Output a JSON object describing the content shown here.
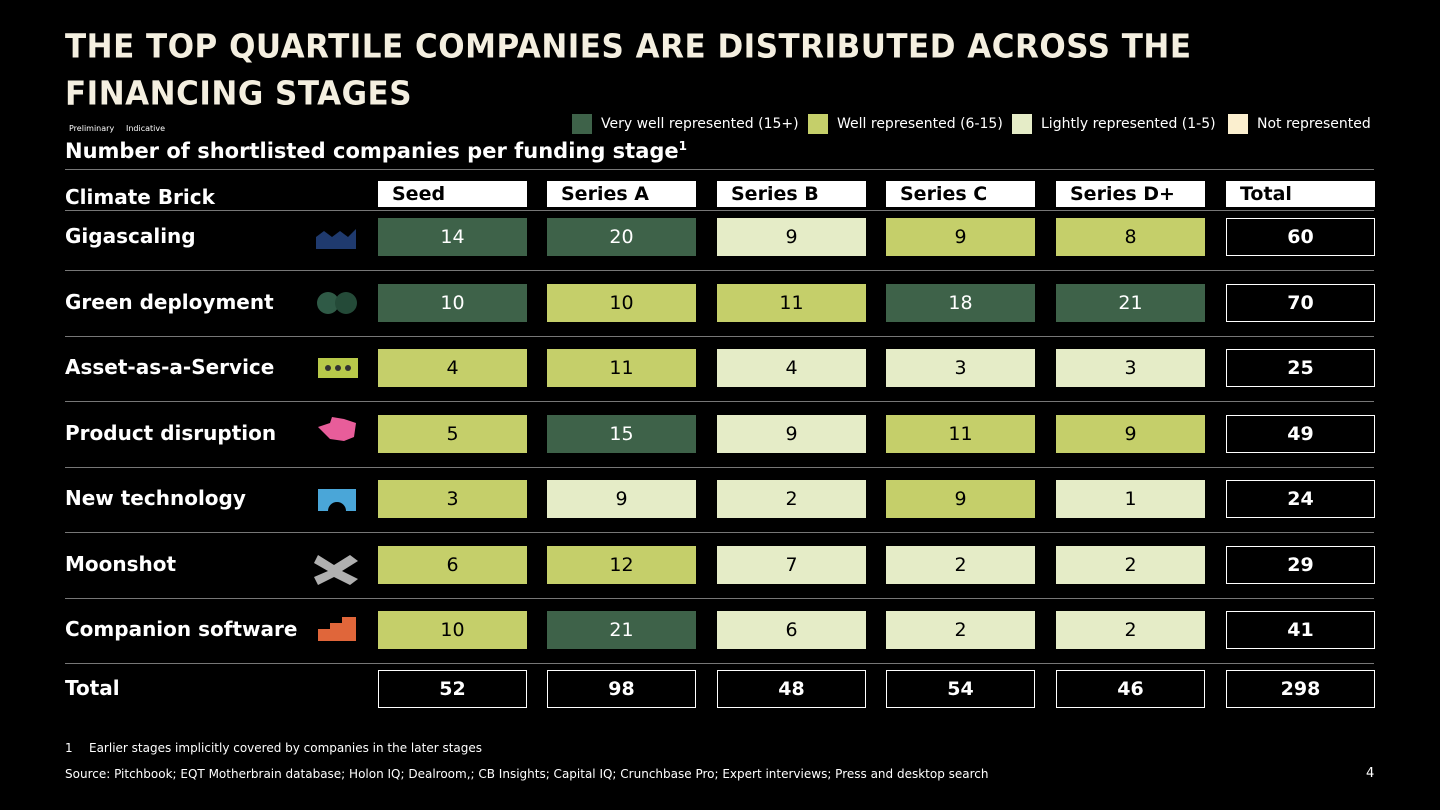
{
  "header": {
    "title": "THE TOP QUARTILE COMPANIES ARE DISTRIBUTED ACROSS THE FINANCING STAGES",
    "tags": [
      "Preliminary",
      "Indicative"
    ]
  },
  "legend": [
    {
      "label": "Very well represented (15+)",
      "color": "#3e6249"
    },
    {
      "label": "Well represented (6-15)",
      "color": "#c5cf6a"
    },
    {
      "label": "Lightly represented (1-5)",
      "color": "#e5ecc7"
    },
    {
      "label": "Not represented",
      "color": "#fbefcf"
    }
  ],
  "table": {
    "subtitle": "Number of shortlisted companies per funding stage",
    "subtitle_note": "1",
    "row_header": "Climate Brick",
    "columns": [
      "Seed",
      "Series A",
      "Series B",
      "Series C",
      "Series D+",
      "Total"
    ],
    "rows": [
      {
        "name": "Gigascaling",
        "values": [
          14,
          20,
          9,
          9,
          8
        ],
        "colors": [
          "#3e6249",
          "#3e6249",
          "#e5ecc7",
          "#c5cf6a",
          "#c5cf6a"
        ],
        "total": 60
      },
      {
        "name": "Green deployment",
        "values": [
          10,
          10,
          11,
          18,
          21
        ],
        "colors": [
          "#3e6249",
          "#c5cf6a",
          "#c5cf6a",
          "#3e6249",
          "#3e6249"
        ],
        "total": 70
      },
      {
        "name": "Asset-as-a-Service",
        "values": [
          4,
          11,
          4,
          3,
          3
        ],
        "colors": [
          "#c5cf6a",
          "#c5cf6a",
          "#e5ecc7",
          "#e5ecc7",
          "#e5ecc7"
        ],
        "total": 25
      },
      {
        "name": "Product disruption",
        "values": [
          5,
          15,
          9,
          11,
          9
        ],
        "colors": [
          "#c5cf6a",
          "#3e6249",
          "#e5ecc7",
          "#c5cf6a",
          "#c5cf6a"
        ],
        "total": 49
      },
      {
        "name": "New technology",
        "values": [
          3,
          9,
          2,
          9,
          1
        ],
        "colors": [
          "#c5cf6a",
          "#e5ecc7",
          "#e5ecc7",
          "#c5cf6a",
          "#e5ecc7"
        ],
        "total": 24
      },
      {
        "name": "Moonshot",
        "values": [
          6,
          12,
          7,
          2,
          2
        ],
        "colors": [
          "#c5cf6a",
          "#c5cf6a",
          "#e5ecc7",
          "#e5ecc7",
          "#e5ecc7"
        ],
        "total": 29
      },
      {
        "name": "Companion software",
        "values": [
          10,
          21,
          6,
          2,
          2
        ],
        "colors": [
          "#c5cf6a",
          "#3e6249",
          "#e5ecc7",
          "#e5ecc7",
          "#e5ecc7"
        ],
        "total": 41
      }
    ],
    "total_row": {
      "name": "Total",
      "values": [
        52,
        98,
        48,
        54,
        46
      ],
      "total": 298
    }
  },
  "footnote": {
    "number": "1",
    "text": "Earlier stages implicitly covered by companies in the later stages"
  },
  "source": "Source: Pitchbook; EQT Motherbrain database; Holon IQ; Dealroom,; CB Insights; Capital IQ; Crunchbase Pro; Expert interviews; Press and desktop search",
  "page": "4"
}
